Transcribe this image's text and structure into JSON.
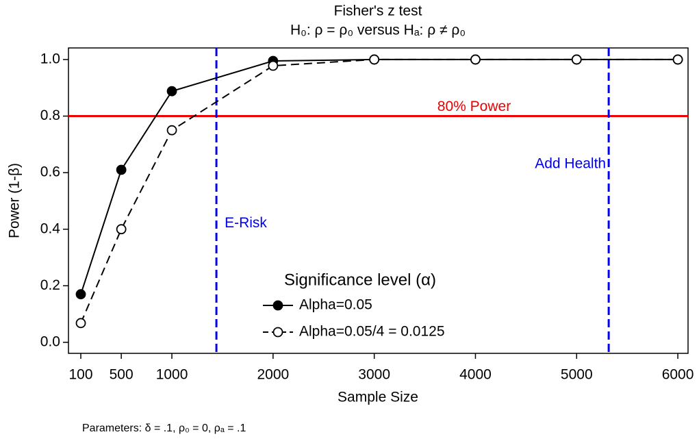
{
  "chart_data": {
    "type": "line",
    "title": "Fisher's z test",
    "subtitle": "H₀: ρ = ρ₀  versus  Hₐ: ρ ≠ ρ₀",
    "x_label": "Sample Size",
    "y_label": "Power (1-β)",
    "note": "Parameters: δ = .1, ρ₀ = 0, ρₐ = .1",
    "legend_title": "Significance level (α)",
    "x": [
      100,
      500,
      1000,
      2000,
      3000,
      4000,
      5000,
      6000
    ],
    "series": [
      {
        "name": "Alpha=0.05",
        "color": "#000000",
        "line_style": "solid",
        "marker": "filled",
        "values": [
          0.17,
          0.61,
          0.888,
          0.995,
          1.0,
          1.0,
          1.0,
          1.0
        ]
      },
      {
        "name": "Alpha=0.05/4 = 0.0125",
        "color": "#000000",
        "line_style": "dashed",
        "marker": "hollow",
        "values": [
          0.068,
          0.4,
          0.75,
          0.978,
          1.0,
          1.0,
          1.0,
          1.0
        ]
      }
    ],
    "xlim": [
      -22,
      6101
    ],
    "ylim": [
      -0.039,
      1.041
    ],
    "xticks": [
      100,
      500,
      1000,
      2000,
      3000,
      4000,
      5000,
      6000
    ],
    "yticks": [
      {
        "value": 0,
        "label": "0.0"
      },
      0.2,
      0.4,
      0.6,
      0.8,
      {
        "value": 1,
        "label": "1.0"
      }
    ],
    "reference_lines": [
      {
        "axis": "y",
        "value": 0.8,
        "label": "80% Power",
        "color": "#ee0000",
        "line_style": "solid"
      },
      {
        "axis": "x",
        "value": 1440,
        "label": "E-Risk",
        "color": "#0000ee",
        "line_style": "dashed"
      },
      {
        "axis": "x",
        "value": 5317,
        "label": "Add Health",
        "color": "#0000ee",
        "line_style": "dashed"
      }
    ]
  }
}
